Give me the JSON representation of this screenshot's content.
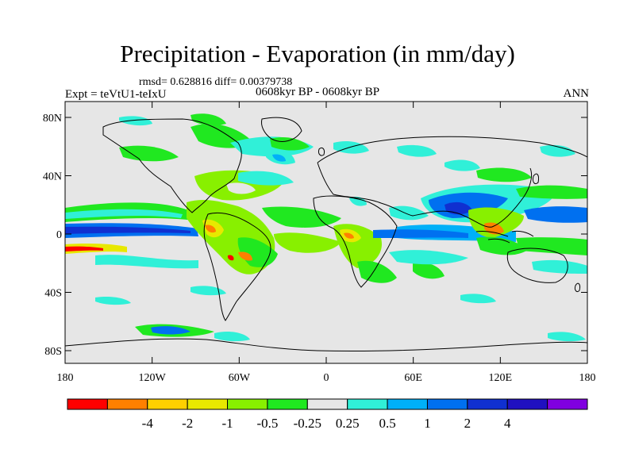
{
  "title": "Precipitation - Evaporation (in mm/day)",
  "stats": "rmsd= 0.628816 diff= 0.00379738",
  "period": "0608kyr BP - 0608kyr BP",
  "experiment": "Expt = teVtU1-teIxU",
  "season": "ANN",
  "y_ticks": [
    {
      "label": "80N",
      "lat": 80
    },
    {
      "label": "40N",
      "lat": 40
    },
    {
      "label": "0",
      "lat": 0
    },
    {
      "label": "40S",
      "lat": -40
    },
    {
      "label": "80S",
      "lat": -80
    }
  ],
  "x_ticks": [
    {
      "label": "180",
      "lon": -180
    },
    {
      "label": "120W",
      "lon": -120
    },
    {
      "label": "60W",
      "lon": -60
    },
    {
      "label": "0",
      "lon": 0
    },
    {
      "label": "60E",
      "lon": 60
    },
    {
      "label": "120E",
      "lon": 120
    },
    {
      "label": "180",
      "lon": 180
    }
  ],
  "colorbar": {
    "colors": [
      "#ff0000",
      "#ff8000",
      "#ffd000",
      "#e8e800",
      "#88f000",
      "#20e820",
      "#e6e6e6",
      "#30f0d8",
      "#00b0f8",
      "#0070f0",
      "#1030d0",
      "#2010c0",
      "#8000e0"
    ],
    "labels": [
      "-4",
      "-2",
      "-1",
      "-0.5",
      "-0.25",
      "0.25",
      "0.5",
      "1",
      "2",
      "4"
    ]
  },
  "colors": {
    "background": "#e6e6e6",
    "coast": "#000000"
  }
}
